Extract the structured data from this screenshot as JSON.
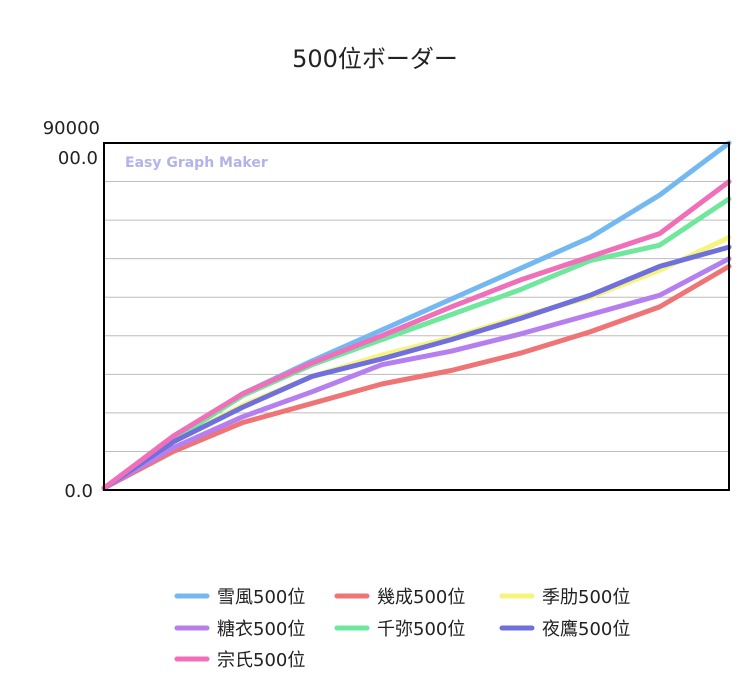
{
  "chart_data": {
    "type": "line",
    "title": "500位ボーダー",
    "xlabel": "",
    "ylabel": "",
    "ylim": [
      0,
      90000
    ],
    "y_tick_labels": {
      "top_multiplier": "90000",
      "top": "00.0",
      "bottom": "0.0"
    },
    "watermark": "Easy Graph Maker",
    "grid": true,
    "legend_position": "bottom",
    "x": [
      0,
      1,
      2,
      3,
      4,
      5,
      6,
      7,
      8,
      9
    ],
    "series": [
      {
        "name": "雪風500位",
        "color": "#74b8f2",
        "values": [
          500,
          13500,
          25000,
          33500,
          41500,
          49500,
          57500,
          65500,
          76500,
          90000
        ]
      },
      {
        "name": "幾成500位",
        "color": "#ef7476",
        "values": [
          500,
          10000,
          17500,
          22500,
          27500,
          31000,
          35500,
          41000,
          47500,
          58000
        ]
      },
      {
        "name": "季肋500位",
        "color": "#f6f47a",
        "values": [
          500,
          12500,
          22000,
          29500,
          35000,
          39500,
          45000,
          50000,
          57000,
          65500
        ]
      },
      {
        "name": "糖衣500位",
        "color": "#b67ff0",
        "values": [
          500,
          11000,
          19000,
          25500,
          32500,
          36000,
          40500,
          45500,
          50500,
          60000
        ]
      },
      {
        "name": "千弥500位",
        "color": "#6fe79c",
        "values": [
          500,
          13000,
          24500,
          32500,
          39000,
          45500,
          52000,
          59500,
          63500,
          75500
        ]
      },
      {
        "name": "夜鷹500位",
        "color": "#6f6fdd",
        "values": [
          500,
          12500,
          21500,
          29500,
          34000,
          39000,
          44500,
          50500,
          58000,
          63000
        ]
      },
      {
        "name": "宗氏500位",
        "color": "#f06fb8",
        "values": [
          500,
          14000,
          25000,
          33000,
          40000,
          47500,
          54500,
          60500,
          66500,
          80000
        ]
      }
    ]
  }
}
